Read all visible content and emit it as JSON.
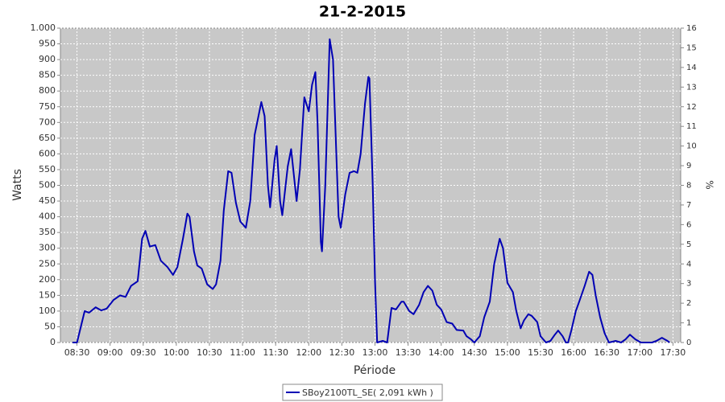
{
  "chart_data": {
    "type": "line",
    "title": "21-2-2015",
    "xlabel": "Période",
    "ylabel": "Watts",
    "y2label": "%",
    "x": [
      "08:26",
      "08:30",
      "08:37",
      "08:41",
      "08:47",
      "08:52",
      "08:57",
      "09:03",
      "09:09",
      "09:14",
      "09:19",
      "09:25",
      "09:29",
      "09:32",
      "09:36",
      "09:41",
      "09:46",
      "09:52",
      "09:57",
      "10:01",
      "10:06",
      "10:10",
      "10:12",
      "10:16",
      "10:19",
      "10:23",
      "10:28",
      "10:33",
      "10:36",
      "10:40",
      "10:43",
      "10:47",
      "10:50",
      "10:54",
      "10:58",
      "11:03",
      "11:07",
      "11:11",
      "11:17",
      "11:20",
      "11:23",
      "11:25",
      "11:29",
      "11:31",
      "11:34",
      "11:36",
      "11:41",
      "11:44",
      "11:49",
      "11:52",
      "11:56",
      "12:00",
      "12:03",
      "12:06",
      "12:08",
      "12:11",
      "12:12",
      "12:15",
      "12:19",
      "12:22",
      "12:25",
      "12:27",
      "12:29",
      "12:33",
      "12:37",
      "12:41",
      "12:44",
      "12:47",
      "12:51",
      "12:54",
      "12:55",
      "12:58",
      "13:00",
      "13:02",
      "13:07",
      "13:11",
      "13:15",
      "13:19",
      "13:24",
      "13:26",
      "13:31",
      "13:35",
      "13:40",
      "13:44",
      "13:48",
      "13:52",
      "13:56",
      "14:00",
      "14:05",
      "14:10",
      "14:14",
      "14:20",
      "14:23",
      "14:27",
      "14:30",
      "14:35",
      "14:39",
      "14:44",
      "14:48",
      "14:53",
      "14:56",
      "15:00",
      "15:05",
      "15:08",
      "15:12",
      "15:15",
      "15:19",
      "15:22",
      "15:27",
      "15:30",
      "15:35",
      "15:39",
      "15:43",
      "15:46",
      "15:50",
      "15:53",
      "15:55",
      "15:58",
      "16:02",
      "16:05",
      "16:10",
      "16:14",
      "16:17",
      "16:20",
      "16:24",
      "16:28",
      "16:32",
      "16:38",
      "16:43",
      "16:47",
      "16:51",
      "16:56",
      "17:01",
      "17:11",
      "17:15",
      "17:20",
      "17:25",
      "17:27"
    ],
    "series": [
      {
        "name": "SBoy2100TL_SE( 2,091 kWh )",
        "color": "#0000b4",
        "values": [
          0,
          0,
          100,
          95,
          112,
          102,
          108,
          135,
          150,
          145,
          180,
          195,
          330,
          355,
          305,
          310,
          260,
          240,
          215,
          240,
          330,
          410,
          400,
          290,
          245,
          235,
          185,
          170,
          185,
          260,
          420,
          545,
          540,
          445,
          385,
          365,
          450,
          660,
          765,
          720,
          500,
          430,
          580,
          625,
          450,
          405,
          560,
          615,
          450,
          550,
          780,
          735,
          820,
          860,
          700,
          320,
          290,
          500,
          965,
          900,
          600,
          400,
          365,
          470,
          540,
          545,
          540,
          600,
          760,
          845,
          840,
          500,
          200,
          0,
          5,
          0,
          110,
          105,
          130,
          130,
          100,
          90,
          120,
          160,
          180,
          165,
          120,
          105,
          65,
          60,
          40,
          38,
          20,
          10,
          0,
          20,
          80,
          130,
          250,
          330,
          300,
          190,
          160,
          100,
          45,
          70,
          90,
          85,
          65,
          20,
          0,
          5,
          25,
          38,
          20,
          0,
          0,
          40,
          100,
          130,
          180,
          225,
          215,
          150,
          80,
          30,
          0,
          5,
          0,
          10,
          25,
          10,
          0,
          0,
          5,
          15,
          5,
          0
        ]
      }
    ],
    "xlim": [
      "08:15",
      "17:37"
    ],
    "xticks": [
      "08:30",
      "09:00",
      "09:30",
      "10:00",
      "10:30",
      "11:00",
      "11:30",
      "12:00",
      "12:30",
      "13:00",
      "13:30",
      "14:00",
      "14:30",
      "15:00",
      "15:30",
      "16:00",
      "16:30",
      "17:00",
      "17:30"
    ],
    "ylim": [
      0,
      1000
    ],
    "yticks": [
      0,
      50,
      100,
      150,
      200,
      250,
      300,
      350,
      400,
      450,
      500,
      550,
      600,
      650,
      700,
      750,
      800,
      850,
      900,
      950,
      {
        "value": 1000,
        "label": "1.000"
      }
    ],
    "y2lim": [
      0,
      16
    ],
    "y2ticks": [
      0,
      1,
      2,
      3,
      4,
      5,
      6,
      7,
      8,
      9,
      10,
      11,
      12,
      13,
      14,
      15,
      16
    ],
    "grid": true,
    "legend": "bottom"
  }
}
